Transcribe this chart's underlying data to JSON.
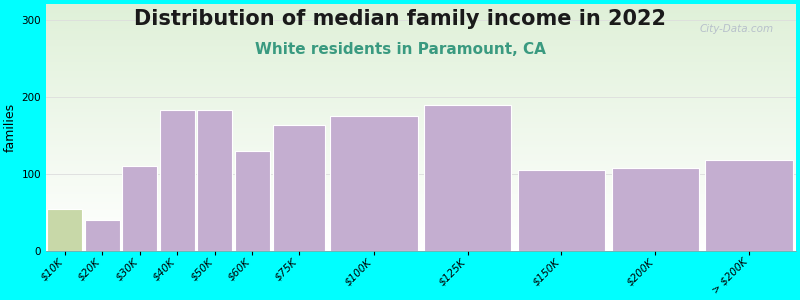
{
  "title": "Distribution of median family income in 2022",
  "subtitle": "White residents in Paramount, CA",
  "ylabel": "families",
  "categories": [
    "$10K",
    "$20K",
    "$30K",
    "$40K",
    "$50K",
    "$60K",
    "$75K",
    "$100K",
    "$125K",
    "$150K",
    "$200K",
    "> $200K"
  ],
  "values": [
    55,
    40,
    110,
    183,
    183,
    130,
    163,
    175,
    190,
    105,
    108,
    118
  ],
  "bar_widths": [
    1,
    1,
    1,
    1,
    1,
    1,
    1.5,
    2.5,
    2.5,
    2.5,
    2.5,
    2.5
  ],
  "bar_color": "#c4aed0",
  "bar_edge_color": "#ffffff",
  "background_outer": "#00FFFF",
  "plot_bg_top_color": "#dff0d8",
  "plot_bg_bottom_color": "#ffffff",
  "title_fontsize": 15,
  "subtitle_fontsize": 11,
  "subtitle_color": "#3a9a80",
  "ylabel_fontsize": 9,
  "tick_fontsize": 7.5,
  "ylim": [
    0,
    320
  ],
  "yticks": [
    0,
    100,
    200,
    300
  ],
  "watermark": "City-Data.com",
  "first_bar_color": "#c8d8a8"
}
